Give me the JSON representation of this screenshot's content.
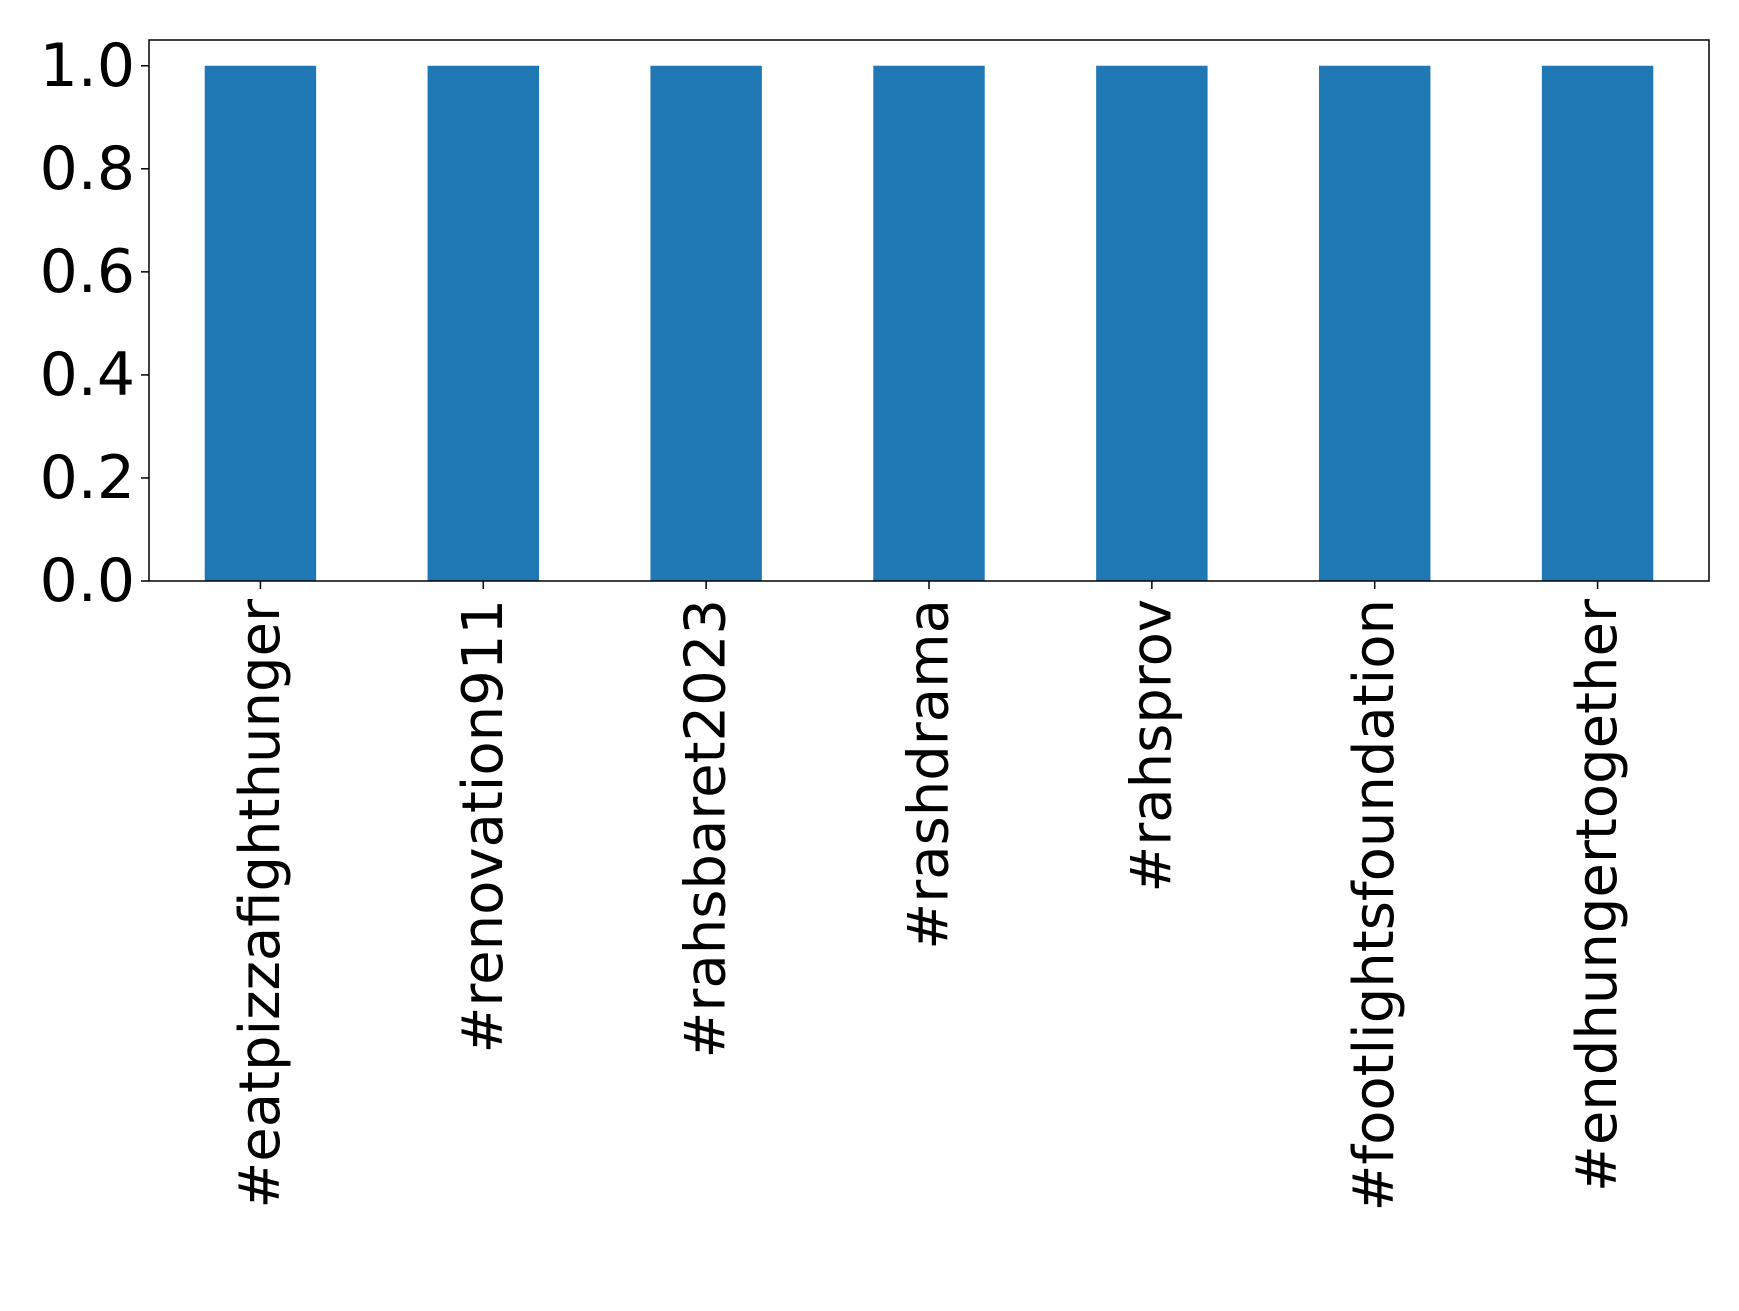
{
  "chart_data": {
    "type": "bar",
    "categories": [
      "#eatpizzafighthunger",
      "#renovation911",
      "#rahsbaret2023",
      "#rashdrama",
      "#rahsprov",
      "#footlightsfoundation",
      "#endhungertogether"
    ],
    "values": [
      1,
      1,
      1,
      1,
      1,
      1,
      1
    ],
    "color": "#1f77b4",
    "ylim": [
      0,
      1.05
    ],
    "yticks": [
      {
        "value": 0,
        "label": "0.0"
      },
      0.2,
      0.4,
      0.6,
      0.8,
      {
        "value": 1,
        "label": "1.0"
      }
    ],
    "grid": false
  }
}
